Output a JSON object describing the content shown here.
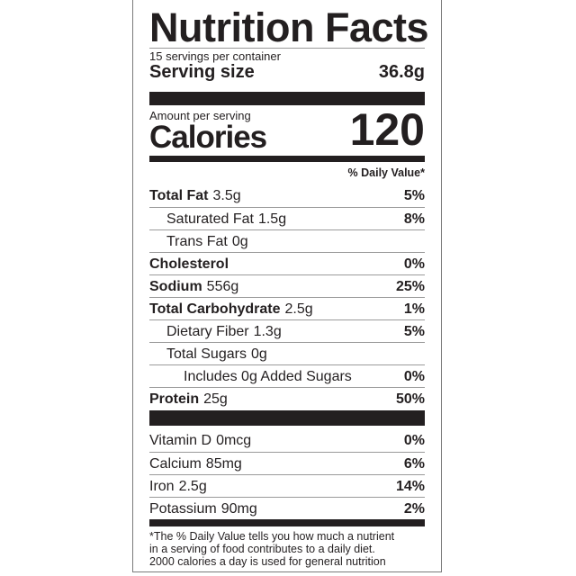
{
  "title": "Nutrition Facts",
  "servings_per_container": "15 servings per container",
  "serving_size_label": "Serving size",
  "serving_size_value": "36.8g",
  "amount_per_serving": "Amount per serving",
  "calories_label": "Calories",
  "calories_value": "120",
  "daily_value_header": "% Daily Value*",
  "nutrients": [
    {
      "name": "Total Fat",
      "amount": "3.5g",
      "dv": "5%",
      "bold": true,
      "indent": 0
    },
    {
      "name": "Saturated Fat",
      "amount": "1.5g",
      "dv": "8%",
      "bold": false,
      "indent": 1
    },
    {
      "name": "Trans Fat",
      "amount": "0g",
      "dv": "",
      "bold": false,
      "indent": 1
    },
    {
      "name": "Cholesterol",
      "amount": "",
      "dv": "0%",
      "bold": true,
      "indent": 0
    },
    {
      "name": "Sodium",
      "amount": "556g",
      "dv": "25%",
      "bold": true,
      "indent": 0
    },
    {
      "name": "Total Carbohydrate",
      "amount": "2.5g",
      "dv": "1%",
      "bold": true,
      "indent": 0
    },
    {
      "name": "Dietary Fiber",
      "amount": "1.3g",
      "dv": "5%",
      "bold": false,
      "indent": 1
    },
    {
      "name": "Total Sugars",
      "amount": "0g",
      "dv": "",
      "bold": false,
      "indent": 1
    },
    {
      "name": "Includes 0g Added Sugars",
      "amount": "",
      "dv": "0%",
      "bold": false,
      "indent": 2
    },
    {
      "name": "Protein",
      "amount": "25g",
      "dv": "50%",
      "bold": true,
      "indent": 0
    }
  ],
  "vitamins": [
    {
      "name": "Vitamin D",
      "amount": "0mcg",
      "dv": "0%"
    },
    {
      "name": "Calcium",
      "amount": "85mg",
      "dv": "6%"
    },
    {
      "name": "Iron",
      "amount": "2.5g",
      "dv": "14%"
    },
    {
      "name": "Potassium",
      "amount": "90mg",
      "dv": "2%"
    }
  ],
  "footnote": [
    "*The % Daily Value tells you how much a nutrient",
    "in a serving of food contributes to a daily diet.",
    "2000 calories a day is used for general nutrition"
  ]
}
